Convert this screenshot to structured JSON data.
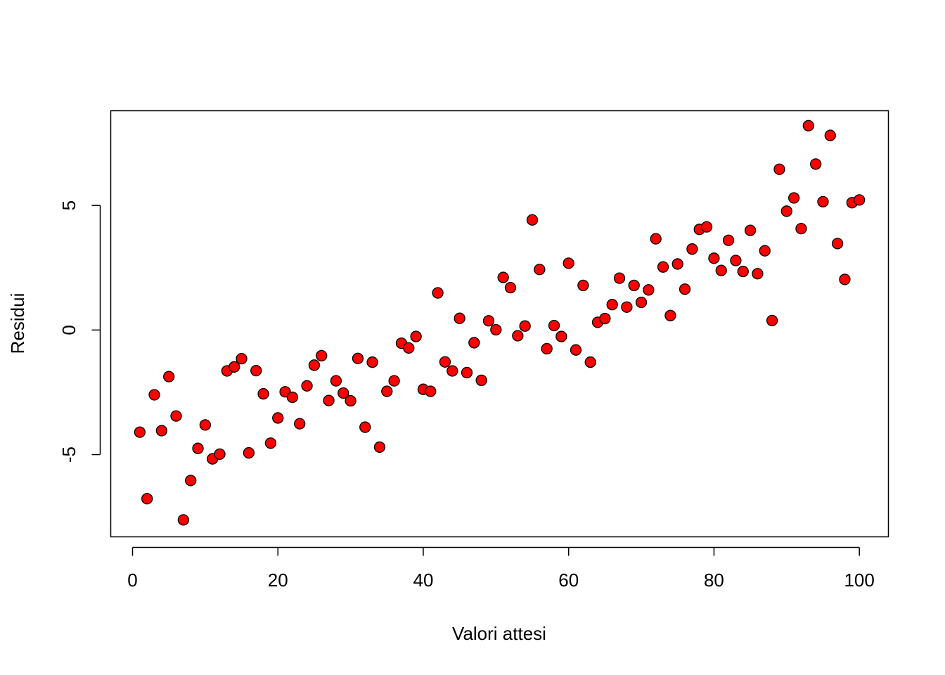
{
  "chart_data": {
    "type": "scatter",
    "xlabel": "Valori attesi",
    "ylabel": "Residui",
    "xlim": [
      -3,
      104
    ],
    "ylim": [
      -8.3,
      8.8
    ],
    "x_ticks": [
      0,
      20,
      40,
      60,
      80,
      100
    ],
    "x_tick_labels": [
      "0",
      "20",
      "40",
      "60",
      "80",
      "100"
    ],
    "y_ticks": [
      -5,
      0,
      5
    ],
    "y_tick_labels": [
      "-5",
      "0",
      "5"
    ],
    "grid": false,
    "marker": {
      "fill": "#ff0000",
      "edge": "#000000",
      "shape": "circle"
    },
    "points": [
      [
        1,
        -4.1
      ],
      [
        2,
        -6.77
      ],
      [
        3,
        -2.6
      ],
      [
        4,
        -4.04
      ],
      [
        5,
        -1.87
      ],
      [
        6,
        -3.45
      ],
      [
        7,
        -7.62
      ],
      [
        8,
        -6.04
      ],
      [
        9,
        -4.75
      ],
      [
        10,
        -3.81
      ],
      [
        11,
        -5.17
      ],
      [
        12,
        -4.98
      ],
      [
        13,
        -1.64
      ],
      [
        14,
        -1.48
      ],
      [
        15,
        -1.15
      ],
      [
        16,
        -4.93
      ],
      [
        17,
        -1.63
      ],
      [
        18,
        -2.56
      ],
      [
        19,
        -4.54
      ],
      [
        20,
        -3.53
      ],
      [
        21,
        -2.48
      ],
      [
        22,
        -2.7
      ],
      [
        23,
        -3.76
      ],
      [
        24,
        -2.24
      ],
      [
        25,
        -1.41
      ],
      [
        26,
        -1.03
      ],
      [
        27,
        -2.83
      ],
      [
        28,
        -2.04
      ],
      [
        29,
        -2.53
      ],
      [
        30,
        -2.84
      ],
      [
        31,
        -1.14
      ],
      [
        32,
        -3.9
      ],
      [
        33,
        -1.29
      ],
      [
        34,
        -4.7
      ],
      [
        35,
        -2.46
      ],
      [
        36,
        -2.04
      ],
      [
        37,
        -0.53
      ],
      [
        38,
        -0.72
      ],
      [
        39,
        -0.26
      ],
      [
        40,
        -2.38
      ],
      [
        41,
        -2.46
      ],
      [
        42,
        1.49
      ],
      [
        43,
        -1.28
      ],
      [
        44,
        -1.64
      ],
      [
        45,
        0.47
      ],
      [
        46,
        -1.71
      ],
      [
        47,
        -0.51
      ],
      [
        48,
        -2.02
      ],
      [
        49,
        0.37
      ],
      [
        50,
        0.01
      ],
      [
        51,
        2.11
      ],
      [
        52,
        1.7
      ],
      [
        53,
        -0.23
      ],
      [
        54,
        0.16
      ],
      [
        55,
        4.42
      ],
      [
        56,
        2.43
      ],
      [
        57,
        -0.75
      ],
      [
        58,
        0.18
      ],
      [
        59,
        -0.26
      ],
      [
        60,
        2.68
      ],
      [
        61,
        -0.8
      ],
      [
        62,
        1.79
      ],
      [
        63,
        -1.29
      ],
      [
        64,
        0.31
      ],
      [
        65,
        0.46
      ],
      [
        66,
        1.02
      ],
      [
        67,
        2.08
      ],
      [
        68,
        0.92
      ],
      [
        69,
        1.79
      ],
      [
        70,
        1.11
      ],
      [
        71,
        1.61
      ],
      [
        72,
        3.66
      ],
      [
        73,
        2.53
      ],
      [
        74,
        0.58
      ],
      [
        75,
        2.65
      ],
      [
        76,
        1.64
      ],
      [
        77,
        3.25
      ],
      [
        78,
        4.04
      ],
      [
        79,
        4.14
      ],
      [
        80,
        2.88
      ],
      [
        81,
        2.39
      ],
      [
        82,
        3.6
      ],
      [
        83,
        2.79
      ],
      [
        84,
        2.35
      ],
      [
        85,
        4.0
      ],
      [
        86,
        2.26
      ],
      [
        87,
        3.18
      ],
      [
        88,
        0.38
      ],
      [
        89,
        6.45
      ],
      [
        90,
        4.77
      ],
      [
        91,
        5.3
      ],
      [
        92,
        4.07
      ],
      [
        93,
        8.2
      ],
      [
        94,
        6.66
      ],
      [
        95,
        5.15
      ],
      [
        96,
        7.81
      ],
      [
        97,
        3.47
      ],
      [
        98,
        2.03
      ],
      [
        99,
        5.11
      ],
      [
        100,
        5.22
      ]
    ]
  }
}
